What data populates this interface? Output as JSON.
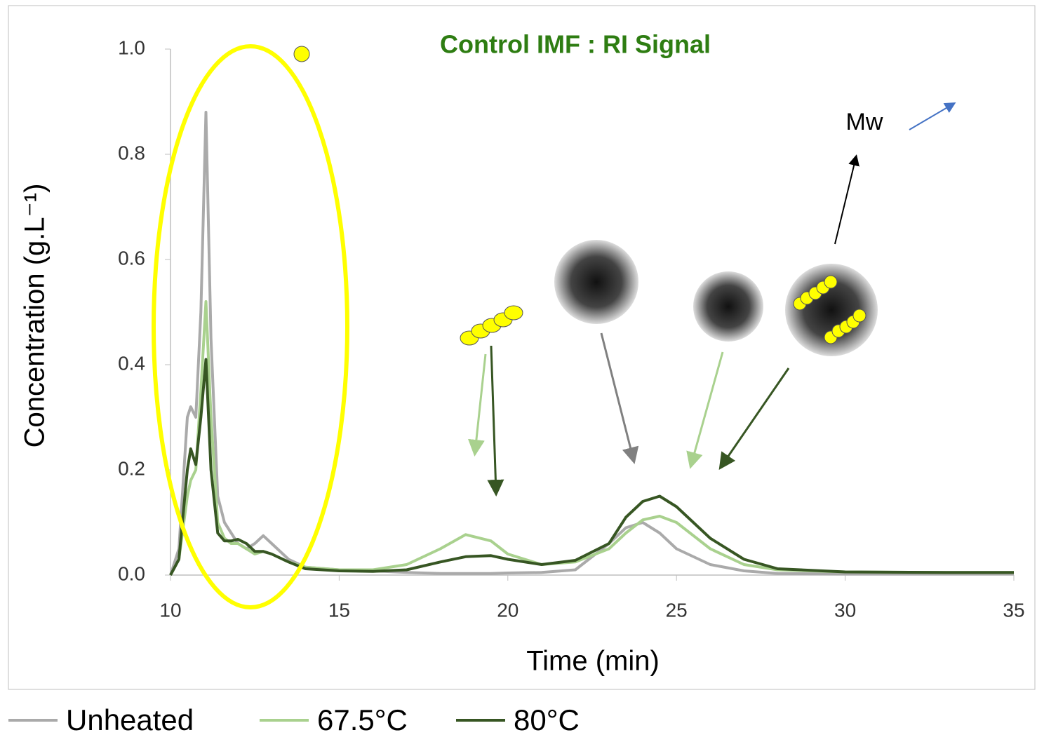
{
  "chart_data": {
    "type": "line",
    "title": "Control IMF : RI Signal",
    "x_label": "Time (min)",
    "y_label": "Concentration (g.L⁻¹)",
    "x": [
      10,
      10.25,
      10.5,
      10.6,
      10.75,
      10.9,
      11.05,
      11.2,
      11.4,
      11.6,
      11.8,
      12,
      12.25,
      12.5,
      12.75,
      13,
      13.5,
      14,
      15,
      16,
      17,
      18,
      18.75,
      19.5,
      20,
      21,
      22,
      23,
      23.5,
      24,
      24.5,
      25,
      26,
      27,
      28,
      30,
      33,
      35
    ],
    "series": [
      {
        "name": "Unheated",
        "color": "#aaaaaa",
        "values": [
          0,
          0.05,
          0.3,
          0.32,
          0.3,
          0.5,
          0.88,
          0.45,
          0.15,
          0.1,
          0.08,
          0.06,
          0.05,
          0.06,
          0.075,
          0.06,
          0.03,
          0.015,
          0.01,
          0.008,
          0.005,
          0.003,
          0.003,
          0.003,
          0.004,
          0.005,
          0.01,
          0.06,
          0.09,
          0.1,
          0.08,
          0.05,
          0.02,
          0.008,
          0.003,
          0.002,
          0.002,
          0.002
        ]
      },
      {
        "name": "67.5°C",
        "color": "#a9d18e",
        "values": [
          0,
          0.03,
          0.15,
          0.18,
          0.2,
          0.35,
          0.52,
          0.3,
          0.1,
          0.07,
          0.06,
          0.06,
          0.05,
          0.04,
          0.045,
          0.04,
          0.025,
          0.015,
          0.01,
          0.01,
          0.02,
          0.05,
          0.077,
          0.065,
          0.04,
          0.02,
          0.025,
          0.05,
          0.08,
          0.105,
          0.112,
          0.1,
          0.05,
          0.02,
          0.01,
          0.006,
          0.005,
          0.005
        ]
      },
      {
        "name": "80°C",
        "color": "#375623",
        "values": [
          0,
          0.03,
          0.2,
          0.24,
          0.21,
          0.3,
          0.41,
          0.2,
          0.08,
          0.065,
          0.065,
          0.068,
          0.06,
          0.045,
          0.045,
          0.04,
          0.025,
          0.012,
          0.008,
          0.007,
          0.01,
          0.025,
          0.035,
          0.037,
          0.03,
          0.02,
          0.028,
          0.06,
          0.11,
          0.14,
          0.15,
          0.13,
          0.07,
          0.03,
          0.012,
          0.006,
          0.005,
          0.005
        ]
      }
    ],
    "xlim": [
      10,
      35
    ],
    "xticks": [
      10,
      15,
      20,
      25,
      30,
      35
    ],
    "ylim": [
      0,
      1
    ],
    "yticks": [
      {
        "value": 0,
        "label": "0.0"
      },
      0.2,
      0.4,
      0.6,
      0.8,
      {
        "value": 1,
        "label": "1.0"
      }
    ],
    "grid": false,
    "legend": "bottom",
    "annotations": [
      "Mw"
    ]
  }
}
